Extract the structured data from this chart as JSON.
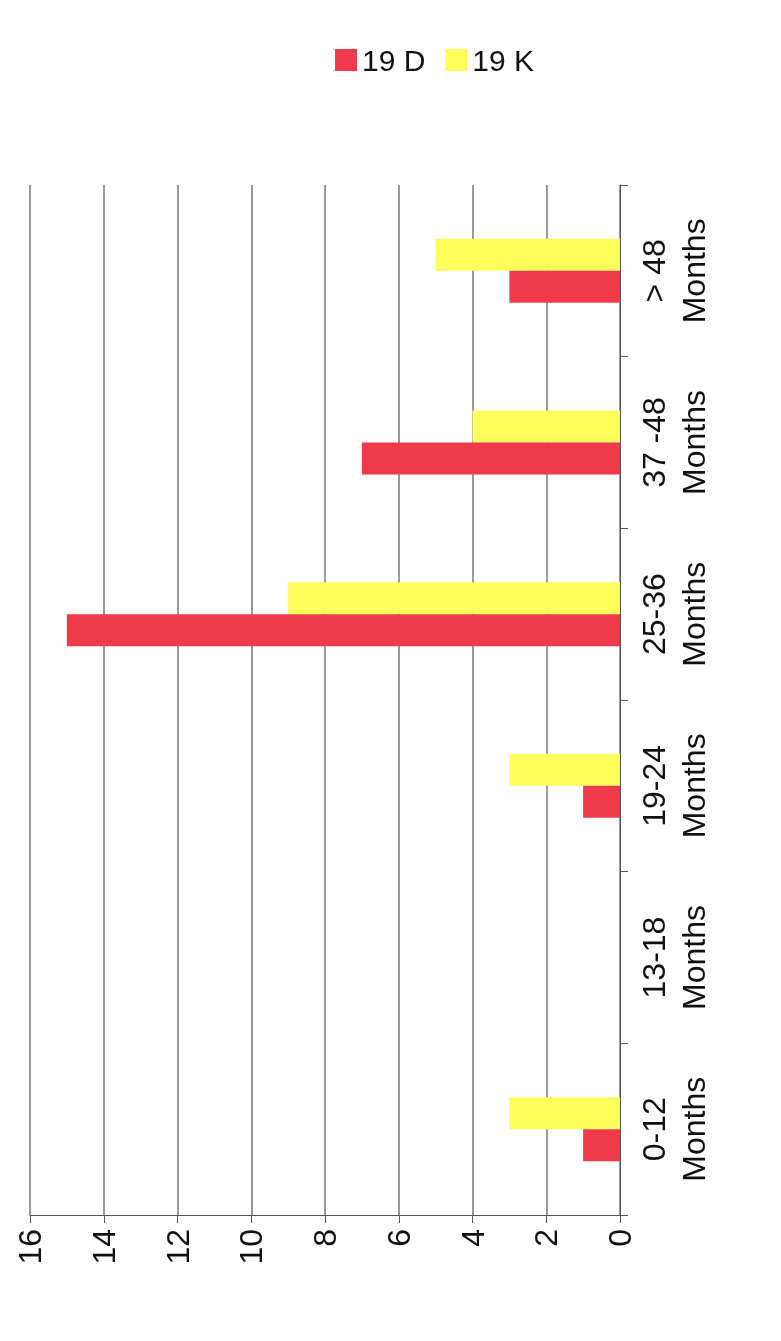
{
  "chart_data": {
    "type": "bar",
    "orientation": "horizontal",
    "categories": [
      "> 48 Months",
      "37 -48 Months",
      "25-36 Months",
      "19-24 Months",
      "13-18 Months",
      "0-12 Months"
    ],
    "series": [
      {
        "name": "19 D",
        "color": "#ee3a4a",
        "values": [
          3,
          7,
          15,
          1,
          0,
          1
        ]
      },
      {
        "name": "19 K",
        "color": "#ffff5c",
        "values": [
          5,
          4,
          9,
          3,
          0,
          3
        ]
      }
    ],
    "xlim": [
      16,
      0
    ],
    "xticks": [
      16,
      14,
      12,
      10,
      8,
      6,
      4,
      2,
      0
    ],
    "grid": "x",
    "legend": "top"
  }
}
